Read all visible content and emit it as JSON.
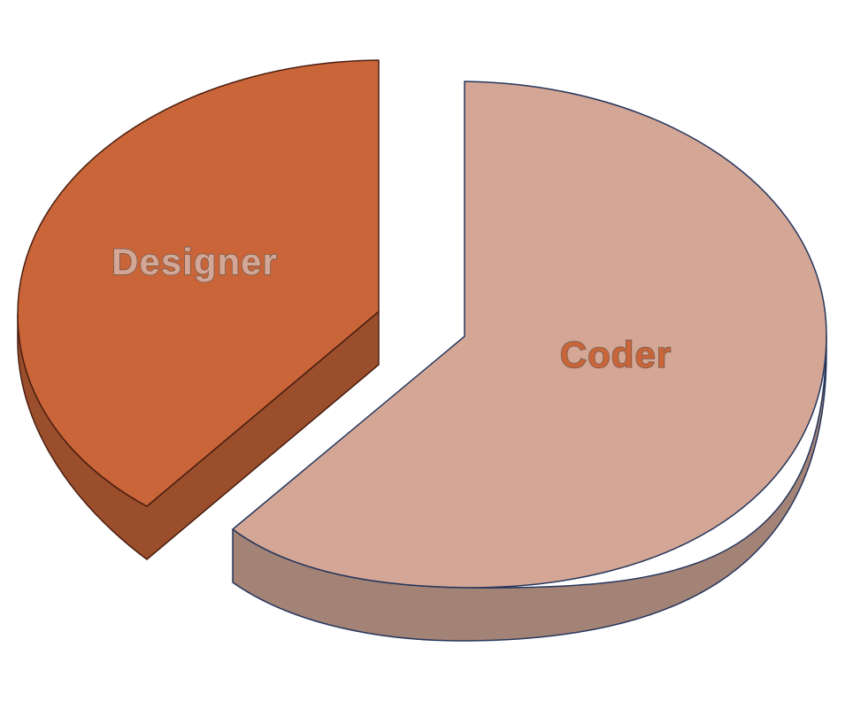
{
  "chart_data": {
    "type": "pie",
    "style": "3d-exploded",
    "title": "",
    "slices": [
      {
        "name": "Designer",
        "value": 38,
        "color": "#c96538",
        "side_color": "#9a4e2c",
        "edge_color": "#4a1e10",
        "label_color": "#d3a695"
      },
      {
        "name": "Coder",
        "value": 62,
        "color": "#d3a695",
        "side_color": "#a38376",
        "edge_color": "#26365c",
        "label_color": "#c96538"
      }
    ]
  }
}
